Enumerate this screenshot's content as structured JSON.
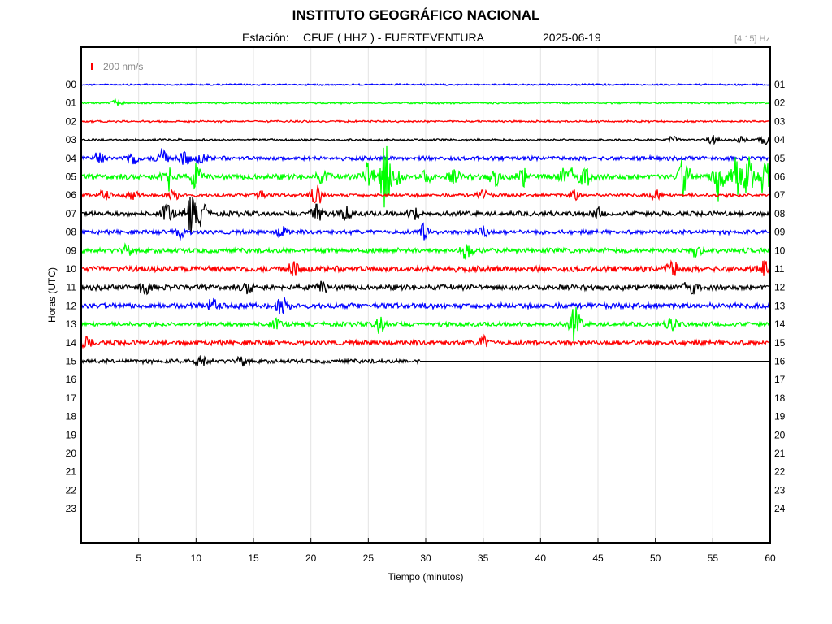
{
  "header": {
    "title": "INSTITUTO GEOGRÁFICO NACIONAL",
    "station_label": "Estación:",
    "station": "CFUE ( HHZ ) - FUERTEVENTURA",
    "date": "2025-06-19",
    "filter": "[4 15] Hz"
  },
  "chart_data": {
    "type": "line",
    "title": "INSTITUTO GEOGRÁFICO NACIONAL",
    "xlabel": "Tiempo (minutos)",
    "ylabel": "Horas (UTC)",
    "xlim": [
      0,
      60
    ],
    "x_ticks": [
      "5",
      "10",
      "15",
      "20",
      "25",
      "30",
      "35",
      "40",
      "45",
      "50",
      "55",
      "60"
    ],
    "y_ticks_left": [
      "00",
      "01",
      "02",
      "03",
      "04",
      "05",
      "06",
      "07",
      "08",
      "09",
      "10",
      "11",
      "12",
      "13",
      "14",
      "15",
      "16",
      "17",
      "18",
      "19",
      "20",
      "21",
      "22",
      "23"
    ],
    "y_ticks_right": [
      "01",
      "02",
      "03",
      "04",
      "05",
      "06",
      "07",
      "08",
      "09",
      "10",
      "11",
      "12",
      "13",
      "14",
      "15",
      "16",
      "17",
      "18",
      "19",
      "20",
      "21",
      "22",
      "23",
      "24"
    ],
    "scale_label": "200 nm/s",
    "scale_color": "#ff0000",
    "grid": "vertical",
    "series": [
      {
        "hour": "00",
        "color": "#0000ff",
        "end_minute": 60,
        "amp": 0.6,
        "bursts": []
      },
      {
        "hour": "01",
        "color": "#00ff00",
        "end_minute": 60,
        "amp": 0.7,
        "bursts": [
          [
            3,
            3
          ]
        ]
      },
      {
        "hour": "02",
        "color": "#ff0000",
        "end_minute": 60,
        "amp": 0.8,
        "bursts": []
      },
      {
        "hour": "03",
        "color": "#000000",
        "end_minute": 60,
        "amp": 0.9,
        "bursts": [
          [
            51.5,
            4
          ],
          [
            55,
            5
          ],
          [
            57.5,
            4
          ],
          [
            59.5,
            6
          ]
        ]
      },
      {
        "hour": "04",
        "color": "#0000ff",
        "end_minute": 60,
        "amp": 2.2,
        "bursts": [
          [
            1.5,
            6
          ],
          [
            4.5,
            8
          ],
          [
            7,
            12
          ],
          [
            9,
            8
          ],
          [
            10.5,
            6
          ]
        ]
      },
      {
        "hour": "05",
        "color": "#00ff00",
        "end_minute": 60,
        "amp": 3.0,
        "bursts": [
          [
            7.5,
            18
          ],
          [
            10,
            14
          ],
          [
            21,
            7
          ],
          [
            25,
            20
          ],
          [
            26.5,
            40
          ],
          [
            27.5,
            12
          ],
          [
            30,
            7
          ],
          [
            32.5,
            7
          ],
          [
            36,
            10
          ],
          [
            38.5,
            10
          ],
          [
            42,
            8
          ],
          [
            43,
            16
          ],
          [
            44,
            10
          ],
          [
            52.5,
            25
          ],
          [
            55.5,
            28
          ],
          [
            57,
            24
          ],
          [
            58,
            30
          ],
          [
            59.5,
            24
          ]
        ]
      },
      {
        "hour": "06",
        "color": "#ff0000",
        "end_minute": 60,
        "amp": 1.8,
        "bursts": [
          [
            2,
            7
          ],
          [
            4.5,
            5
          ],
          [
            8,
            6
          ],
          [
            15.5,
            7
          ],
          [
            20.5,
            12
          ],
          [
            35,
            6
          ],
          [
            43,
            6
          ],
          [
            50,
            6
          ]
        ]
      },
      {
        "hour": "07",
        "color": "#000000",
        "end_minute": 60,
        "amp": 2.6,
        "bursts": [
          [
            7.5,
            12
          ],
          [
            9.5,
            22
          ],
          [
            10.5,
            14
          ],
          [
            20.5,
            16
          ],
          [
            23,
            8
          ],
          [
            29,
            6
          ],
          [
            45,
            5
          ]
        ]
      },
      {
        "hour": "08",
        "color": "#0000ff",
        "end_minute": 60,
        "amp": 2.2,
        "bursts": [
          [
            8.5,
            10
          ],
          [
            17.5,
            6
          ],
          [
            30,
            12
          ],
          [
            35,
            7
          ]
        ]
      },
      {
        "hour": "09",
        "color": "#00ff00",
        "end_minute": 60,
        "amp": 2.6,
        "bursts": [
          [
            4,
            6
          ],
          [
            33.5,
            10
          ],
          [
            53.5,
            9
          ]
        ]
      },
      {
        "hour": "10",
        "color": "#ff0000",
        "end_minute": 60,
        "amp": 3.2,
        "bursts": [
          [
            18.5,
            8
          ],
          [
            51.5,
            10
          ],
          [
            59.5,
            8
          ]
        ]
      },
      {
        "hour": "11",
        "color": "#000000",
        "end_minute": 60,
        "amp": 3.0,
        "bursts": [
          [
            5.5,
            8
          ],
          [
            14.5,
            6
          ],
          [
            21,
            6
          ],
          [
            53,
            14
          ]
        ]
      },
      {
        "hour": "12",
        "color": "#0000ff",
        "end_minute": 60,
        "amp": 3.0,
        "bursts": [
          [
            11.5,
            9
          ],
          [
            17.5,
            10
          ]
        ]
      },
      {
        "hour": "13",
        "color": "#00ff00",
        "end_minute": 60,
        "amp": 2.4,
        "bursts": [
          [
            17,
            6
          ],
          [
            26,
            10
          ],
          [
            43,
            20
          ],
          [
            51.5,
            10
          ]
        ]
      },
      {
        "hour": "14",
        "color": "#ff0000",
        "end_minute": 60,
        "amp": 2.6,
        "bursts": [
          [
            0.5,
            6
          ],
          [
            35,
            7
          ]
        ]
      },
      {
        "hour": "15",
        "color": "#000000",
        "end_minute": 29.5,
        "amp": 2.2,
        "bursts": [
          [
            10.5,
            8
          ],
          [
            14,
            5
          ]
        ]
      }
    ]
  }
}
